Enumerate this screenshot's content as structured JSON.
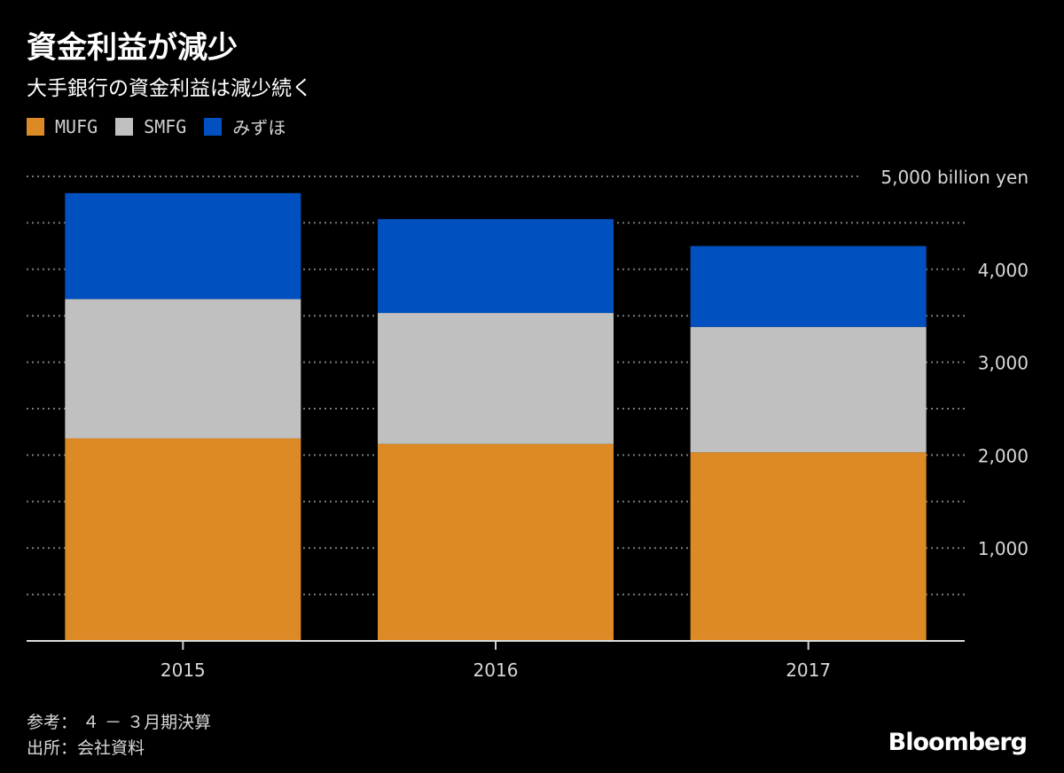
{
  "header": {
    "title": "資金利益が減少",
    "subtitle": "大手銀行の資金利益は減少続く"
  },
  "chart_data": {
    "type": "bar",
    "stacked": true,
    "title": "資金利益が減少",
    "subtitle": "大手銀行の資金利益は減少続く",
    "categories": [
      "2015",
      "2016",
      "2017"
    ],
    "series": [
      {
        "name": "MUFG",
        "color": "#dc8a25",
        "values": [
          2180,
          2120,
          2030
        ]
      },
      {
        "name": "SMFG",
        "color": "#c0c0c0",
        "values": [
          1500,
          1410,
          1350
        ]
      },
      {
        "name": "みずほ",
        "color": "#0051bf",
        "values": [
          1140,
          1010,
          870
        ]
      }
    ],
    "y_ticks": [
      1000,
      2000,
      3000,
      4000,
      5000
    ],
    "y_tick_labels": [
      "1,000",
      "2,000",
      "3,000",
      "4,000",
      "5,000 billion yen"
    ],
    "ylim": [
      0,
      5000
    ],
    "xlabel": "",
    "ylabel": "billion yen",
    "grid": true,
    "legend_position": "top-left"
  },
  "footer": {
    "note": "参考： ４ － ３月期決算",
    "source": "出所：会社資料",
    "brand": "Bloomberg"
  }
}
